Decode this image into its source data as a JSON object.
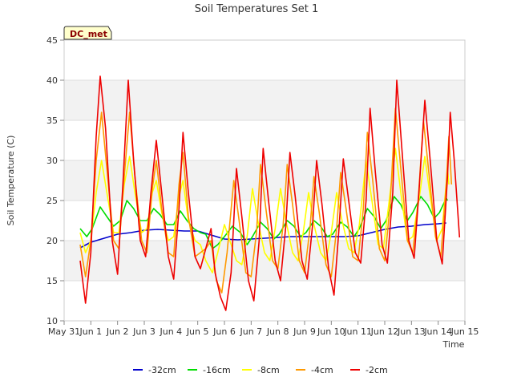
{
  "chart_data": {
    "type": "line",
    "title": "Soil Temperatures Set 1",
    "xlabel": "Time",
    "ylabel": "Soil Temperature (C)",
    "site_label": "DC_met",
    "xlim": [
      0,
      15
    ],
    "ylim": [
      10,
      45
    ],
    "x_ticks": [
      {
        "x": 0,
        "label": "May 31"
      },
      {
        "x": 1,
        "label": "Jun 1"
      },
      {
        "x": 2,
        "label": "Jun 2"
      },
      {
        "x": 3,
        "label": "Jun 3"
      },
      {
        "x": 4,
        "label": "Jun 4"
      },
      {
        "x": 5,
        "label": "Jun 5"
      },
      {
        "x": 6,
        "label": "Jun 6"
      },
      {
        "x": 7,
        "label": "Jun 7"
      },
      {
        "x": 8,
        "label": "Jun 8"
      },
      {
        "x": 9,
        "label": "Jun 9"
      },
      {
        "x": 10,
        "label": "Jun 10"
      },
      {
        "x": 11,
        "label": "Jun 11"
      },
      {
        "x": 12,
        "label": "Jun 12"
      },
      {
        "x": 13,
        "label": "Jun 13"
      },
      {
        "x": 14,
        "label": "Jun 14"
      },
      {
        "x": 15,
        "label": "Jun 15"
      }
    ],
    "y_ticks": [
      10,
      15,
      20,
      25,
      30,
      35,
      40,
      45
    ],
    "bands": [
      [
        15,
        20
      ],
      [
        25,
        30
      ],
      [
        35,
        40
      ]
    ],
    "legend_position": "bottom",
    "series": [
      {
        "name": "-32cm",
        "color": "#0000cc",
        "points": [
          [
            0.6,
            19.1
          ],
          [
            1.0,
            19.8
          ],
          [
            1.5,
            20.3
          ],
          [
            2.0,
            20.8
          ],
          [
            2.5,
            21.0
          ],
          [
            3.0,
            21.3
          ],
          [
            3.5,
            21.4
          ],
          [
            4.0,
            21.3
          ],
          [
            4.5,
            21.2
          ],
          [
            5.0,
            21.2
          ],
          [
            5.5,
            20.7
          ],
          [
            6.0,
            20.2
          ],
          [
            6.5,
            20.1
          ],
          [
            7.0,
            20.2
          ],
          [
            7.5,
            20.3
          ],
          [
            8.0,
            20.4
          ],
          [
            8.5,
            20.5
          ],
          [
            9.0,
            20.5
          ],
          [
            9.5,
            20.5
          ],
          [
            10.0,
            20.5
          ],
          [
            10.5,
            20.5
          ],
          [
            11.0,
            20.6
          ],
          [
            11.5,
            21.0
          ],
          [
            12.0,
            21.4
          ],
          [
            12.5,
            21.7
          ],
          [
            13.0,
            21.8
          ],
          [
            13.5,
            22.0
          ],
          [
            14.0,
            22.1
          ],
          [
            14.3,
            22.2
          ]
        ]
      },
      {
        "name": "-16cm",
        "color": "#00dd00",
        "points": [
          [
            0.6,
            21.5
          ],
          [
            0.85,
            20.5
          ],
          [
            1.05,
            21.5
          ],
          [
            1.35,
            24.2
          ],
          [
            1.6,
            23.0
          ],
          [
            1.85,
            21.8
          ],
          [
            2.1,
            22.5
          ],
          [
            2.35,
            25.0
          ],
          [
            2.6,
            24.0
          ],
          [
            2.85,
            22.5
          ],
          [
            3.1,
            22.5
          ],
          [
            3.35,
            24.0
          ],
          [
            3.6,
            23.2
          ],
          [
            3.85,
            22.0
          ],
          [
            4.1,
            22.0
          ],
          [
            4.35,
            23.7
          ],
          [
            4.6,
            22.5
          ],
          [
            4.85,
            21.5
          ],
          [
            5.1,
            21.0
          ],
          [
            5.3,
            20.8
          ],
          [
            5.55,
            19.0
          ],
          [
            5.75,
            19.5
          ],
          [
            6.0,
            20.5
          ],
          [
            6.3,
            21.8
          ],
          [
            6.6,
            21.0
          ],
          [
            6.85,
            19.5
          ],
          [
            7.05,
            20.5
          ],
          [
            7.35,
            22.3
          ],
          [
            7.6,
            21.5
          ],
          [
            7.85,
            20.2
          ],
          [
            8.05,
            20.8
          ],
          [
            8.35,
            22.5
          ],
          [
            8.6,
            21.8
          ],
          [
            8.85,
            20.5
          ],
          [
            9.05,
            21.0
          ],
          [
            9.35,
            22.5
          ],
          [
            9.6,
            21.8
          ],
          [
            9.85,
            20.5
          ],
          [
            10.05,
            20.8
          ],
          [
            10.35,
            22.3
          ],
          [
            10.6,
            21.7
          ],
          [
            10.85,
            20.5
          ],
          [
            11.05,
            21.5
          ],
          [
            11.35,
            24.0
          ],
          [
            11.6,
            23.0
          ],
          [
            11.85,
            21.5
          ],
          [
            12.05,
            22.5
          ],
          [
            12.35,
            25.5
          ],
          [
            12.6,
            24.5
          ],
          [
            12.85,
            22.5
          ],
          [
            13.05,
            23.5
          ],
          [
            13.35,
            25.5
          ],
          [
            13.6,
            24.5
          ],
          [
            13.85,
            22.8
          ],
          [
            14.05,
            23.5
          ],
          [
            14.3,
            25.3
          ],
          [
            14.35,
            25.0
          ]
        ]
      },
      {
        "name": "-8cm",
        "color": "#ffff00",
        "points": [
          [
            0.6,
            21.0
          ],
          [
            0.8,
            18.5
          ],
          [
            1.0,
            20.0
          ],
          [
            1.2,
            26.0
          ],
          [
            1.4,
            30.0
          ],
          [
            1.6,
            26.0
          ],
          [
            1.85,
            21.0
          ],
          [
            2.05,
            21.0
          ],
          [
            2.25,
            27.0
          ],
          [
            2.45,
            30.5
          ],
          [
            2.65,
            26.0
          ],
          [
            2.9,
            21.0
          ],
          [
            3.1,
            21.5
          ],
          [
            3.3,
            26.0
          ],
          [
            3.45,
            27.5
          ],
          [
            3.65,
            23.5
          ],
          [
            3.9,
            20.0
          ],
          [
            4.1,
            20.5
          ],
          [
            4.3,
            25.5
          ],
          [
            4.45,
            27.5
          ],
          [
            4.65,
            22.5
          ],
          [
            4.9,
            20.0
          ],
          [
            5.1,
            19.5
          ],
          [
            5.3,
            17.5
          ],
          [
            5.55,
            16.0
          ],
          [
            5.75,
            18.5
          ],
          [
            6.0,
            22.0
          ],
          [
            6.2,
            20.0
          ],
          [
            6.45,
            17.5
          ],
          [
            6.65,
            17.0
          ],
          [
            6.85,
            20.5
          ],
          [
            7.05,
            26.5
          ],
          [
            7.25,
            22.5
          ],
          [
            7.5,
            18.5
          ],
          [
            7.7,
            17.5
          ],
          [
            7.9,
            21.5
          ],
          [
            8.1,
            26.5
          ],
          [
            8.3,
            22.5
          ],
          [
            8.55,
            18.5
          ],
          [
            8.75,
            17.5
          ],
          [
            8.95,
            21.0
          ],
          [
            9.15,
            26.0
          ],
          [
            9.35,
            22.0
          ],
          [
            9.6,
            18.5
          ],
          [
            9.8,
            17.5
          ],
          [
            10.0,
            21.0
          ],
          [
            10.2,
            26.0
          ],
          [
            10.4,
            22.5
          ],
          [
            10.65,
            19.0
          ],
          [
            10.85,
            18.5
          ],
          [
            11.05,
            22.0
          ],
          [
            11.3,
            30.0
          ],
          [
            11.5,
            25.5
          ],
          [
            11.75,
            19.5
          ],
          [
            11.95,
            19.0
          ],
          [
            12.15,
            24.5
          ],
          [
            12.4,
            31.5
          ],
          [
            12.6,
            26.0
          ],
          [
            12.85,
            20.0
          ],
          [
            13.05,
            20.5
          ],
          [
            13.3,
            25.5
          ],
          [
            13.5,
            30.5
          ],
          [
            13.7,
            25.5
          ],
          [
            13.95,
            20.0
          ],
          [
            14.15,
            21.5
          ],
          [
            14.35,
            29.0
          ],
          [
            14.4,
            27.0
          ]
        ]
      },
      {
        "name": "-4cm",
        "color": "#ff9900",
        "points": [
          [
            0.6,
            19.5
          ],
          [
            0.8,
            15.5
          ],
          [
            1.0,
            20.0
          ],
          [
            1.2,
            30.0
          ],
          [
            1.4,
            36.0
          ],
          [
            1.6,
            29.0
          ],
          [
            1.85,
            20.0
          ],
          [
            2.05,
            19.0
          ],
          [
            2.25,
            28.0
          ],
          [
            2.45,
            36.0
          ],
          [
            2.65,
            28.0
          ],
          [
            2.9,
            20.0
          ],
          [
            3.1,
            18.5
          ],
          [
            3.3,
            26.5
          ],
          [
            3.45,
            30.0
          ],
          [
            3.65,
            24.0
          ],
          [
            3.9,
            18.5
          ],
          [
            4.1,
            18.0
          ],
          [
            4.3,
            27.0
          ],
          [
            4.45,
            31.0
          ],
          [
            4.65,
            23.0
          ],
          [
            4.9,
            18.0
          ],
          [
            5.1,
            18.5
          ],
          [
            5.3,
            19.0
          ],
          [
            5.5,
            20.0
          ],
          [
            5.7,
            15.0
          ],
          [
            5.9,
            13.5
          ],
          [
            6.1,
            18.5
          ],
          [
            6.35,
            27.5
          ],
          [
            6.55,
            22.5
          ],
          [
            6.8,
            16.0
          ],
          [
            7.0,
            15.5
          ],
          [
            7.2,
            21.0
          ],
          [
            7.35,
            29.5
          ],
          [
            7.55,
            24.0
          ],
          [
            7.8,
            17.5
          ],
          [
            8.0,
            16.5
          ],
          [
            8.2,
            22.0
          ],
          [
            8.35,
            29.5
          ],
          [
            8.55,
            24.5
          ],
          [
            8.8,
            17.5
          ],
          [
            9.0,
            16.0
          ],
          [
            9.2,
            21.5
          ],
          [
            9.35,
            28.0
          ],
          [
            9.55,
            23.5
          ],
          [
            9.8,
            17.0
          ],
          [
            10.0,
            15.5
          ],
          [
            10.2,
            21.5
          ],
          [
            10.35,
            28.5
          ],
          [
            10.55,
            24.0
          ],
          [
            10.8,
            18.0
          ],
          [
            11.0,
            17.5
          ],
          [
            11.2,
            24.0
          ],
          [
            11.35,
            33.5
          ],
          [
            11.55,
            27.5
          ],
          [
            11.8,
            19.0
          ],
          [
            12.0,
            17.5
          ],
          [
            12.2,
            24.5
          ],
          [
            12.4,
            36.5
          ],
          [
            12.6,
            29.0
          ],
          [
            12.85,
            20.0
          ],
          [
            13.05,
            18.5
          ],
          [
            13.25,
            25.0
          ],
          [
            13.45,
            35.0
          ],
          [
            13.65,
            28.5
          ],
          [
            13.9,
            20.5
          ],
          [
            14.1,
            18.0
          ],
          [
            14.3,
            27.0
          ],
          [
            14.4,
            33.0
          ],
          [
            14.5,
            27.0
          ]
        ]
      },
      {
        "name": "-2cm",
        "color": "#ee0000",
        "points": [
          [
            0.6,
            17.5
          ],
          [
            0.8,
            12.2
          ],
          [
            1.0,
            18.5
          ],
          [
            1.2,
            33.0
          ],
          [
            1.35,
            40.5
          ],
          [
            1.55,
            34.0
          ],
          [
            1.8,
            20.0
          ],
          [
            2.0,
            15.8
          ],
          [
            2.2,
            27.0
          ],
          [
            2.4,
            40.0
          ],
          [
            2.6,
            30.0
          ],
          [
            2.85,
            20.0
          ],
          [
            3.05,
            18.0
          ],
          [
            3.25,
            26.0
          ],
          [
            3.45,
            32.5
          ],
          [
            3.65,
            26.0
          ],
          [
            3.9,
            18.0
          ],
          [
            4.1,
            15.2
          ],
          [
            4.3,
            24.0
          ],
          [
            4.45,
            33.5
          ],
          [
            4.65,
            26.0
          ],
          [
            4.9,
            18.0
          ],
          [
            5.1,
            16.5
          ],
          [
            5.3,
            19.0
          ],
          [
            5.5,
            21.5
          ],
          [
            5.65,
            16.0
          ],
          [
            5.85,
            13.0
          ],
          [
            6.05,
            11.3
          ],
          [
            6.25,
            16.0
          ],
          [
            6.45,
            29.0
          ],
          [
            6.65,
            23.0
          ],
          [
            6.9,
            15.0
          ],
          [
            7.1,
            12.5
          ],
          [
            7.3,
            20.0
          ],
          [
            7.45,
            31.5
          ],
          [
            7.65,
            25.0
          ],
          [
            7.9,
            17.5
          ],
          [
            8.1,
            15.0
          ],
          [
            8.3,
            22.0
          ],
          [
            8.45,
            31.0
          ],
          [
            8.65,
            25.5
          ],
          [
            8.9,
            17.5
          ],
          [
            9.1,
            15.2
          ],
          [
            9.3,
            22.0
          ],
          [
            9.45,
            30.0
          ],
          [
            9.65,
            24.5
          ],
          [
            9.9,
            16.5
          ],
          [
            10.1,
            13.2
          ],
          [
            10.3,
            22.0
          ],
          [
            10.45,
            30.2
          ],
          [
            10.65,
            25.0
          ],
          [
            10.9,
            18.5
          ],
          [
            11.1,
            17.2
          ],
          [
            11.3,
            25.0
          ],
          [
            11.45,
            36.5
          ],
          [
            11.65,
            28.5
          ],
          [
            11.9,
            19.5
          ],
          [
            12.1,
            17.2
          ],
          [
            12.3,
            26.0
          ],
          [
            12.45,
            40.0
          ],
          [
            12.65,
            31.0
          ],
          [
            12.9,
            20.0
          ],
          [
            13.1,
            17.8
          ],
          [
            13.3,
            27.0
          ],
          [
            13.5,
            37.5
          ],
          [
            13.7,
            30.0
          ],
          [
            13.95,
            20.0
          ],
          [
            14.15,
            17.1
          ],
          [
            14.35,
            28.0
          ],
          [
            14.45,
            36.0
          ],
          [
            14.6,
            30.0
          ],
          [
            14.8,
            20.4
          ]
        ]
      }
    ]
  }
}
